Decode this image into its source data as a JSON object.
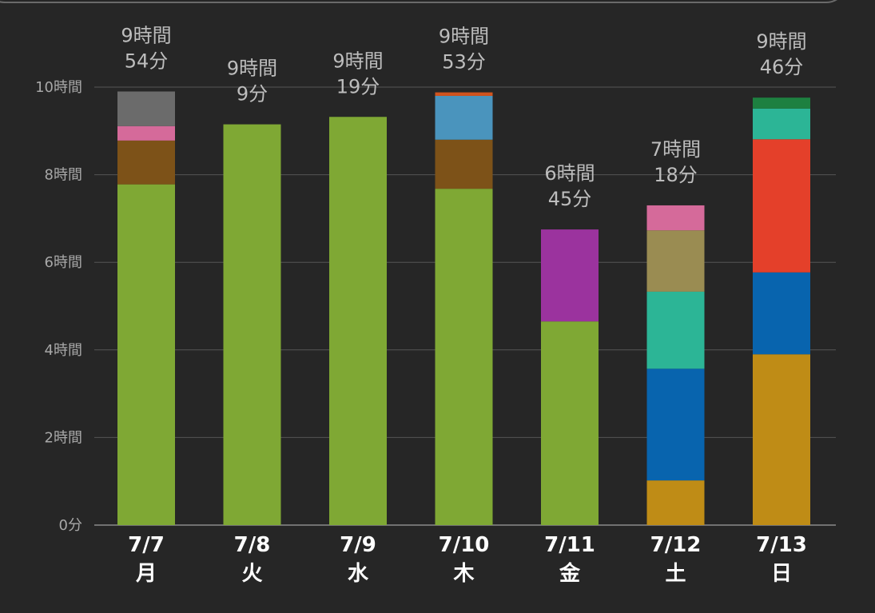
{
  "chart_data": {
    "type": "bar",
    "stacked": true,
    "title": "",
    "xlabel": "",
    "ylabel": "",
    "ylim_hours": [
      0,
      10
    ],
    "grid": true,
    "y_ticks": [
      {
        "hours": 0,
        "label": "0分"
      },
      {
        "hours": 2,
        "label": "2時間"
      },
      {
        "hours": 4,
        "label": "4時間"
      },
      {
        "hours": 6,
        "label": "6時間"
      },
      {
        "hours": 8,
        "label": "8時間"
      },
      {
        "hours": 10,
        "label": "10時間"
      }
    ],
    "days": [
      {
        "date": "7/7",
        "weekday": "月",
        "total_lines": [
          "9時間",
          "54分"
        ],
        "segments": [
          {
            "hours": 7.78,
            "color": "#7fa834"
          },
          {
            "hours": 1.0,
            "color": "#7d5218"
          },
          {
            "hours": 0.33,
            "color": "#d56a9a"
          },
          {
            "hours": 0.79,
            "color": "#6b6b6b"
          }
        ]
      },
      {
        "date": "7/8",
        "weekday": "火",
        "total_lines": [
          "9時間",
          "9分"
        ],
        "segments": [
          {
            "hours": 9.15,
            "color": "#7fa834"
          }
        ]
      },
      {
        "date": "7/9",
        "weekday": "水",
        "total_lines": [
          "9時間",
          "19分"
        ],
        "segments": [
          {
            "hours": 9.32,
            "color": "#7fa834"
          }
        ]
      },
      {
        "date": "7/10",
        "weekday": "木",
        "total_lines": [
          "9時間",
          "53分"
        ],
        "segments": [
          {
            "hours": 7.68,
            "color": "#7fa834"
          },
          {
            "hours": 1.12,
            "color": "#7d5218"
          },
          {
            "hours": 1.0,
            "color": "#4a94bd"
          },
          {
            "hours": 0.08,
            "color": "#d0541e"
          }
        ]
      },
      {
        "date": "7/11",
        "weekday": "金",
        "total_lines": [
          "6時間",
          "45分"
        ],
        "segments": [
          {
            "hours": 4.65,
            "color": "#7fa834"
          },
          {
            "hours": 2.1,
            "color": "#9b339e"
          }
        ]
      },
      {
        "date": "7/12",
        "weekday": "土",
        "total_lines": [
          "7時間",
          "18分"
        ],
        "segments": [
          {
            "hours": 1.02,
            "color": "#bf8c16"
          },
          {
            "hours": 2.55,
            "color": "#0864ae"
          },
          {
            "hours": 1.76,
            "color": "#2cb596"
          },
          {
            "hours": 1.4,
            "color": "#9a8c52"
          },
          {
            "hours": 0.57,
            "color": "#d56a9a"
          }
        ]
      },
      {
        "date": "7/13",
        "weekday": "日",
        "total_lines": [
          "9時間",
          "46分"
        ],
        "segments": [
          {
            "hours": 3.9,
            "color": "#bf8c16"
          },
          {
            "hours": 1.87,
            "color": "#0864ae"
          },
          {
            "hours": 3.04,
            "color": "#e4402a"
          },
          {
            "hours": 0.7,
            "color": "#2cb596"
          },
          {
            "hours": 0.25,
            "color": "#1d8040"
          }
        ]
      }
    ]
  },
  "colors": {
    "background": "#262626",
    "grid": "#555555",
    "axis": "#8a8a8a",
    "tick_text": "#a8a8a8",
    "total_text": "#bdbdbd",
    "day_text": "#ffffff"
  }
}
